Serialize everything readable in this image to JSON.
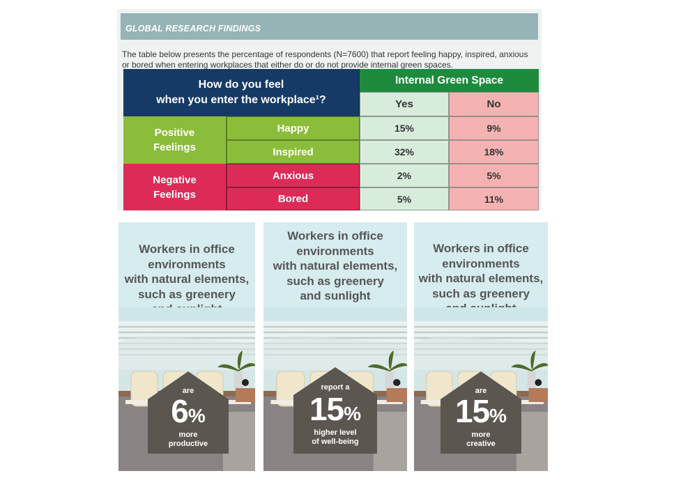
{
  "panel": {
    "header": "GLOBAL RESEARCH FINDINGS",
    "intro": "The table below presents the percentage of respondents (N=7600) that report feeling happy, inspired, anxious or bored when entering workplaces that either do or do not provide internal green spaces."
  },
  "table": {
    "question_line1": "How do you feel",
    "question_line2": "when you enter the workplace¹?",
    "group_header": "Internal Green Space",
    "col_yes": "Yes",
    "col_no": "No",
    "groups": [
      {
        "label_line1": "Positive",
        "label_line2": "Feelings",
        "rows": [
          {
            "feeling": "Happy",
            "yes": "15%",
            "no": "9%"
          },
          {
            "feeling": "Inspired",
            "yes": "32%",
            "no": "18%"
          }
        ]
      },
      {
        "label_line1": "Negative",
        "label_line2": "Feelings",
        "rows": [
          {
            "feeling": "Anxious",
            "yes": "2%",
            "no": "5%"
          },
          {
            "feeling": "Bored",
            "yes": "5%",
            "no": "11%"
          }
        ]
      }
    ]
  },
  "cards": [
    {
      "lines": [
        "Workers in office",
        "environments",
        "with natural elements,",
        "such as greenery",
        "and sunlight"
      ],
      "pre": "are",
      "number": "6",
      "percent": "%",
      "post_line1": "more",
      "post_line2": "productive"
    },
    {
      "lines": [
        "Workers in office",
        "environments",
        "with natural elements,",
        "such as greenery",
        "and sunlight"
      ],
      "pre": "report a",
      "number": "15",
      "percent": "%",
      "post_line1": "higher level",
      "post_line2": "of well-being"
    },
    {
      "lines": [
        "Workers in office",
        "environments",
        "with natural elements,",
        "such as greenery",
        "and sunlight"
      ],
      "pre": "are",
      "number": "15",
      "percent": "%",
      "post_line1": "more",
      "post_line2": "creative"
    }
  ],
  "colors": {
    "header_bar": "#96b3b5",
    "navy": "#163a66",
    "green_header": "#1e8a3d",
    "positive": "#8cbd3a",
    "negative": "#dd2b58",
    "yes_cell": "#d8ecdc",
    "no_cell": "#f4b3b2",
    "card_bg": "#d6ecee",
    "house": "#5b5650"
  }
}
